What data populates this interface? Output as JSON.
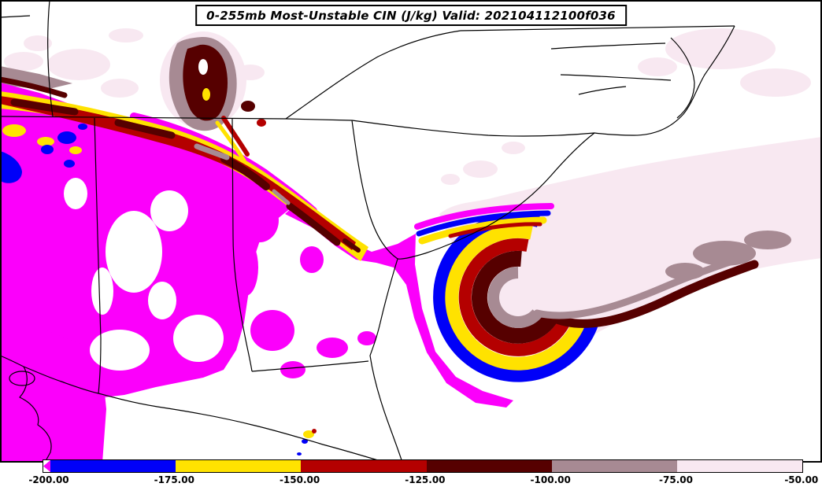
{
  "title_bar": {
    "text": "0-255mb Most-Unstable CIN (J/kg) Valid: 202104112100f036"
  },
  "palette": {
    "magenta": "#FB00FB",
    "blue": "#0000F8",
    "yellow": "#FFE200",
    "red": "#B40000",
    "maroon": "#560000",
    "mauve": "#A78A93",
    "pale": "#F8E8F1",
    "white": "#FFFFFF",
    "border": "#000000"
  },
  "chart_data": {
    "type": "heatmap",
    "title": "0-255mb Most-Unstable CIN (J/kg)",
    "valid_label": "Valid: 202104112100f036",
    "units": "J/kg",
    "region": "Southeastern United States (AL, GA, SC, NC, TN, FL and adjacent Atlantic / Gulf waters)",
    "notes": "Filled contours of most-unstable convective inhibition; strong CIN band from the Mississippi Valley across north Georgia, magenta (weak values) over Alabama, and a tightly wrapped CIN maximum off the Georgia/South Carolina coast opening northeast into pale minimum values over the Atlantic.",
    "colorbar": {
      "orientation": "horizontal",
      "position": "bottom",
      "tick_labels": [
        "-200.00",
        "-175.00",
        "-150.00",
        "-125.00",
        "-100.00",
        "-75.00",
        "-50.00"
      ],
      "bins": [
        {
          "range": "< -200",
          "color_key": "magenta"
        },
        {
          "range": "-200 to -175",
          "color_key": "blue"
        },
        {
          "range": "-175 to -150",
          "color_key": "yellow"
        },
        {
          "range": "-150 to -125",
          "color_key": "red"
        },
        {
          "range": "-125 to -100",
          "color_key": "maroon"
        },
        {
          "range": "-100 to -75",
          "color_key": "mauve"
        },
        {
          "range": "-75 to -50",
          "color_key": "pale"
        }
      ]
    }
  }
}
